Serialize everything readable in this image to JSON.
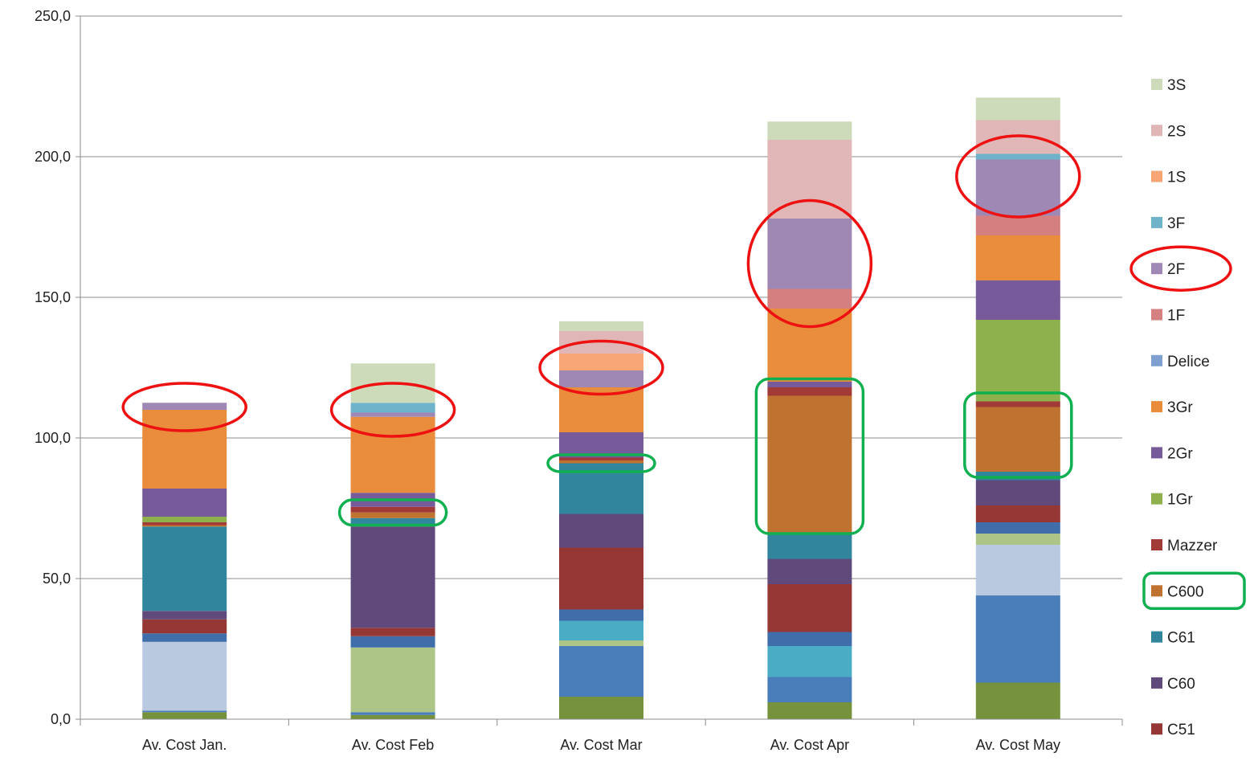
{
  "chart_data": {
    "type": "bar",
    "stacked": true,
    "title": "",
    "xlabel": "",
    "ylabel": "",
    "ylim": [
      0,
      250
    ],
    "y_ticks": [
      "0,0",
      "50,0",
      "100,0",
      "150,0",
      "200,0",
      "250,0"
    ],
    "y_tick_values": [
      0,
      50,
      100,
      150,
      200,
      250
    ],
    "grid": "horizontal",
    "legend_position": "right",
    "categories": [
      "Av. Cost Jan.",
      "Av. Cost Feb",
      "Av. Cost Mar",
      "Av. Cost Apr",
      "Av. Cost May"
    ],
    "series": [
      {
        "name": "",
        "color": "#76923C",
        "values": [
          2.5,
          1.5,
          8,
          6,
          13
        ]
      },
      {
        "name": "",
        "color": "#4A7EBB",
        "values": [
          0.5,
          1,
          18,
          9,
          31
        ]
      },
      {
        "name": "",
        "color": "#B9C9E0",
        "values": [
          24.5,
          0,
          0,
          0,
          18
        ]
      },
      {
        "name": "",
        "color": "#ADC586",
        "values": [
          0,
          23,
          2,
          0,
          4
        ]
      },
      {
        "name": "",
        "color": "#4BACC6",
        "values": [
          0,
          0,
          7,
          11,
          0
        ]
      },
      {
        "name": "",
        "color": "#3F6EAB",
        "values": [
          3,
          4,
          4,
          5,
          4
        ]
      },
      {
        "name": "C51",
        "color": "#953735",
        "values": [
          5,
          3,
          22,
          17,
          6
        ]
      },
      {
        "name": "C60",
        "color": "#604A7B",
        "values": [
          3,
          36,
          12,
          9,
          9
        ]
      },
      {
        "name": "C61",
        "color": "#31859C",
        "values": [
          30,
          3,
          18,
          9,
          3
        ]
      },
      {
        "name": "C600",
        "color": "#C07330",
        "values": [
          0.5,
          2,
          1,
          49,
          23
        ]
      },
      {
        "name": "Mazzer",
        "color": "#A23B37",
        "values": [
          1,
          2,
          1,
          3,
          2
        ]
      },
      {
        "name": "1Gr",
        "color": "#8EB04D",
        "values": [
          2,
          0,
          0,
          0,
          29
        ]
      },
      {
        "name": "2Gr",
        "color": "#775A9A",
        "values": [
          10,
          5,
          9,
          2,
          14
        ]
      },
      {
        "name": "3Gr",
        "color": "#E98C3C",
        "values": [
          28,
          27,
          16,
          26,
          16
        ]
      },
      {
        "name": "Delice",
        "color": "#7F9FCF",
        "values": [
          0,
          0,
          0,
          0,
          0
        ]
      },
      {
        "name": "1F",
        "color": "#D58080",
        "values": [
          0,
          0,
          0,
          7,
          7
        ]
      },
      {
        "name": "2F",
        "color": "#9F89B4",
        "values": [
          2.5,
          1.5,
          6,
          25,
          20
        ]
      },
      {
        "name": "3F",
        "color": "#6FB3CB",
        "values": [
          0,
          3.5,
          0,
          0,
          2
        ]
      },
      {
        "name": "1S",
        "color": "#F8A675",
        "values": [
          0,
          0,
          6,
          0,
          0
        ]
      },
      {
        "name": "2S",
        "color": "#E0B7B6",
        "values": [
          0,
          0,
          8,
          28,
          12
        ]
      },
      {
        "name": "3S",
        "color": "#CDDBBB",
        "values": [
          0,
          14,
          3.5,
          6.5,
          8
        ]
      }
    ],
    "legend_order": [
      "3S",
      "2S",
      "1S",
      "3F",
      "2F",
      "1F",
      "Delice",
      "3Gr",
      "2Gr",
      "1Gr",
      "Mazzer",
      "C600",
      "C61",
      "C60",
      "C51"
    ],
    "annotations": {
      "red_ellipses": [
        {
          "category": "Av. Cost Jan.",
          "y_center": 111,
          "y_half": 5
        },
        {
          "category": "Av. Cost Feb",
          "y_center": 110,
          "y_half": 6
        },
        {
          "category": "Av. Cost Mar",
          "y_center": 125,
          "y_half": 6
        },
        {
          "category": "Av. Cost Apr",
          "y_center": 162,
          "y_half": 19
        },
        {
          "category": "Av. Cost May",
          "y_center": 193,
          "y_half": 11
        }
      ],
      "green_rects": [
        {
          "category": "Av. Cost Feb",
          "y_low": 69,
          "y_high": 78
        },
        {
          "category": "Av. Cost Mar",
          "y_low": 88,
          "y_high": 94
        },
        {
          "category": "Av. Cost Apr",
          "y_low": 66,
          "y_high": 121
        },
        {
          "category": "Av. Cost May",
          "y_low": 86,
          "y_high": 116
        }
      ],
      "legend_red_ellipse": "2F",
      "legend_green_rect": "C600",
      "red_color": "#EE1111",
      "green_color": "#10B050"
    }
  }
}
